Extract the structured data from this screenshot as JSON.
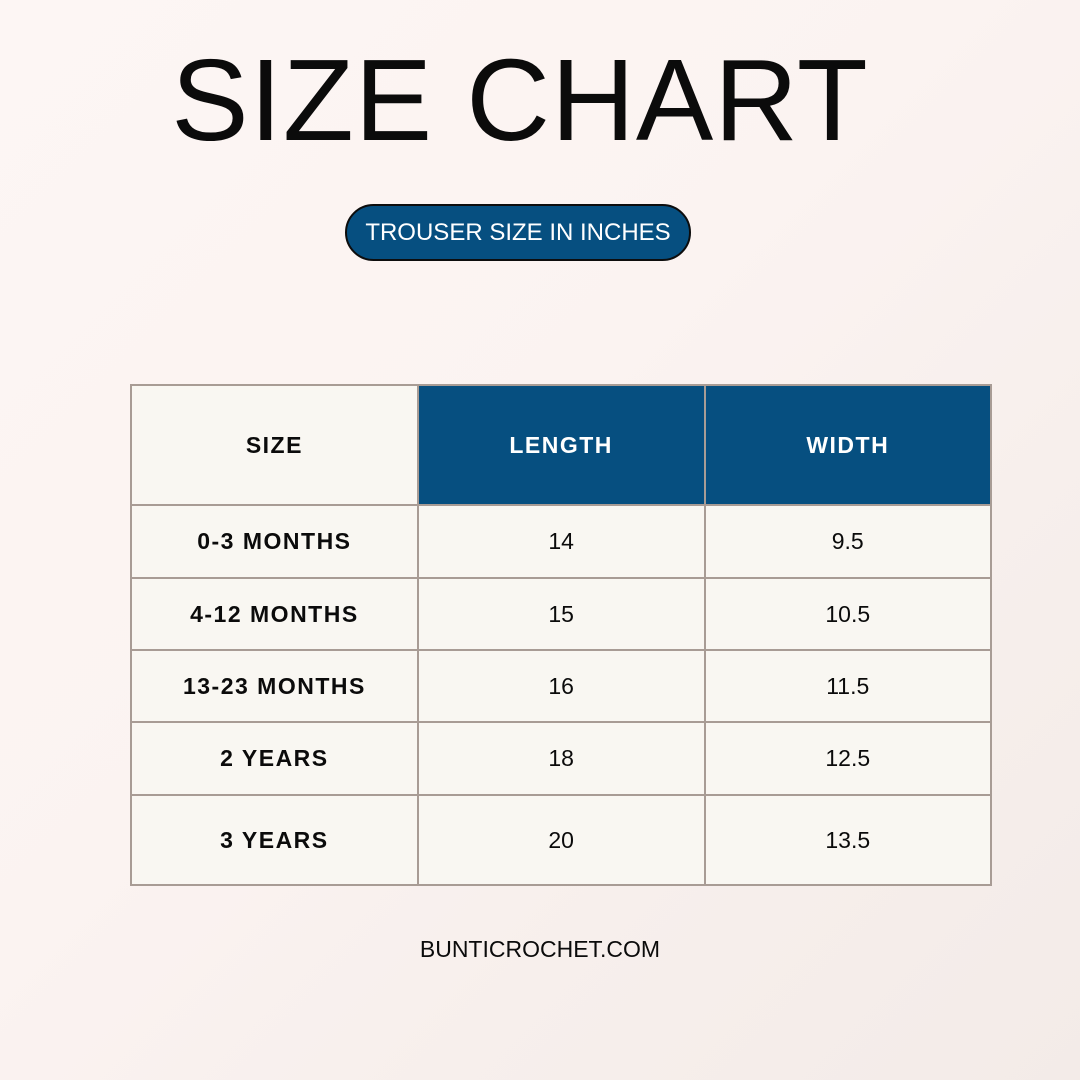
{
  "title": "SIZE CHART",
  "subtitle": "TROUSER SIZE IN INCHES",
  "colors": {
    "accent": "#064f80",
    "cell_bg": "#f9f7f2",
    "border": "#a89c95"
  },
  "table": {
    "headers": [
      "SIZE",
      "LENGTH",
      "WIDTH"
    ],
    "rows": [
      [
        "0-3 MONTHS",
        "14",
        "9.5"
      ],
      [
        "4-12 MONTHS",
        "15",
        "10.5"
      ],
      [
        "13-23 MONTHS",
        "16",
        "11.5"
      ],
      [
        "2 YEARS",
        "18",
        "12.5"
      ],
      [
        "3 YEARS",
        "20",
        "13.5"
      ]
    ]
  },
  "footer": "BUNTICROCHET.COM"
}
